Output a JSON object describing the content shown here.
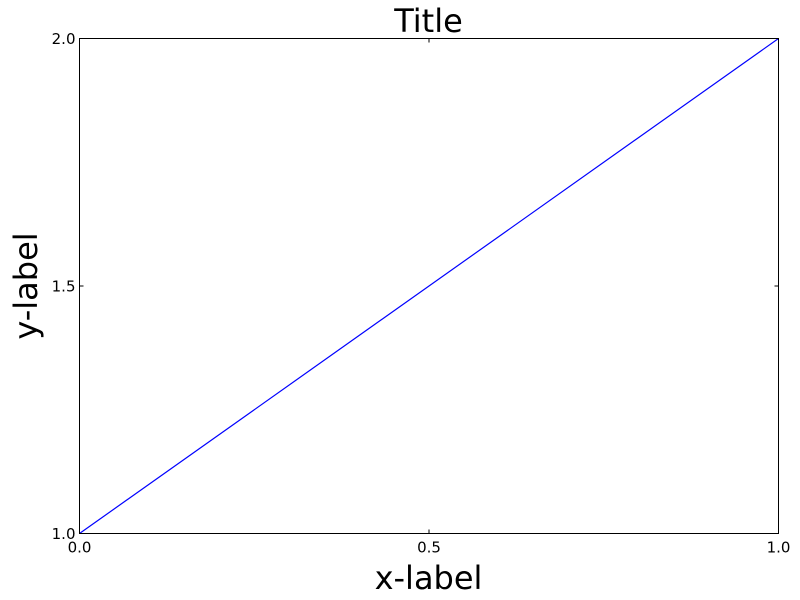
{
  "chart_data": {
    "type": "line",
    "title": "Title",
    "xlabel": "x-label",
    "ylabel": "y-label",
    "xlim": [
      0.0,
      1.0
    ],
    "ylim": [
      1.0,
      2.0
    ],
    "xticks": [
      0.0,
      0.5,
      1.0
    ],
    "xtick_labels": [
      "0.0",
      "0.5",
      "1.0"
    ],
    "yticks": [
      1.0,
      1.5,
      2.0
    ],
    "ytick_labels": [
      "1.0",
      "1.5",
      "2.0"
    ],
    "grid": false,
    "series": [
      {
        "x": [
          0.0,
          1.0
        ],
        "y": [
          1.0,
          2.0
        ],
        "color": "#0000ff"
      }
    ]
  }
}
